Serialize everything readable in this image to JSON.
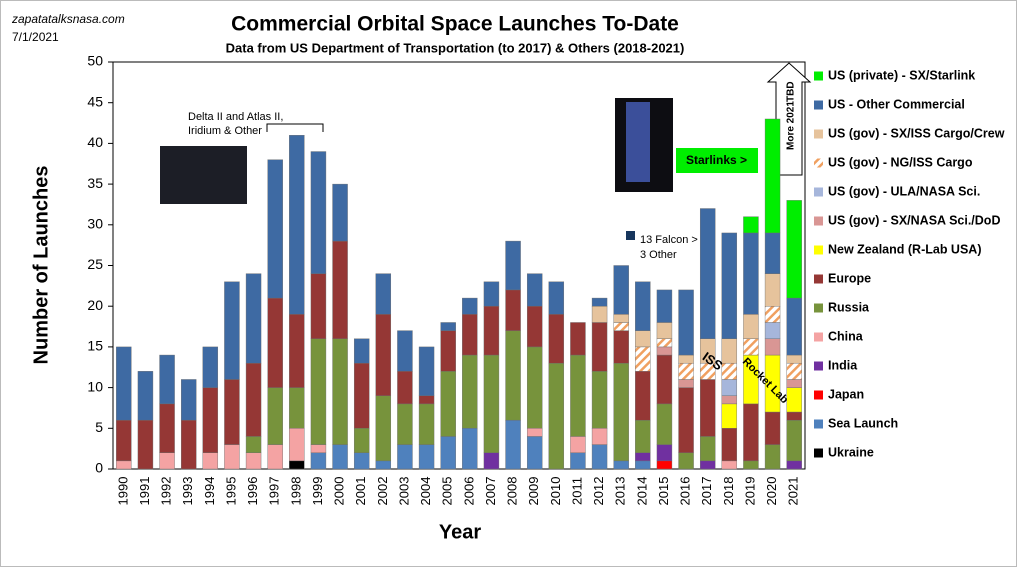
{
  "chart_data": {
    "type": "stacked-bar",
    "title": "Commercial Orbital Space Launches To-Date",
    "subtitle": "Data from US Department of Transportation (to 2017) & Others (2018-2021)",
    "source": "zapatatalksnasa.com",
    "date": "7/1/2021",
    "x_label": "Year",
    "y_label": "Number of Launches",
    "ylim": [
      0,
      50
    ],
    "yticks": [
      0,
      5,
      10,
      15,
      20,
      25,
      30,
      35,
      40,
      45,
      50
    ],
    "grid": false,
    "legend": "right",
    "categories": [
      "1990",
      "1991",
      "1992",
      "1993",
      "1994",
      "1995",
      "1996",
      "1997",
      "1998",
      "1999",
      "2000",
      "2001",
      "2002",
      "2003",
      "2004",
      "2005",
      "2006",
      "2007",
      "2008",
      "2009",
      "2010",
      "2011",
      "2012",
      "2013",
      "2014",
      "2015",
      "2016",
      "2017",
      "2018",
      "2019",
      "2020",
      "2021"
    ],
    "series": [
      {
        "name": "Ukraine",
        "color": "#000000",
        "values": [
          0,
          0,
          0,
          0,
          0,
          0,
          0,
          0,
          1,
          0,
          0,
          0,
          0,
          0,
          0,
          0,
          0,
          0,
          0,
          0,
          0,
          0,
          0,
          0,
          0,
          0,
          0,
          0,
          0,
          0,
          0,
          0
        ]
      },
      {
        "name": "Sea Launch",
        "color": "#4f81bd",
        "values": [
          0,
          0,
          0,
          0,
          0,
          0,
          0,
          0,
          0,
          2,
          3,
          2,
          1,
          3,
          3,
          4,
          5,
          0,
          6,
          4,
          0,
          2,
          3,
          1,
          1,
          0,
          0,
          0,
          0,
          0,
          0,
          0
        ]
      },
      {
        "name": "Japan",
        "color": "#ff0000",
        "values": [
          0,
          0,
          0,
          0,
          0,
          0,
          0,
          0,
          0,
          0,
          0,
          0,
          0,
          0,
          0,
          0,
          0,
          0,
          0,
          0,
          0,
          0,
          0,
          0,
          0,
          1,
          0,
          0,
          0,
          0,
          0,
          0
        ]
      },
      {
        "name": "India",
        "color": "#7030a0",
        "values": [
          0,
          0,
          0,
          0,
          0,
          0,
          0,
          0,
          0,
          0,
          0,
          0,
          0,
          0,
          0,
          0,
          0,
          2,
          0,
          0,
          0,
          0,
          0,
          0,
          1,
          2,
          0,
          1,
          0,
          0,
          0,
          1
        ]
      },
      {
        "name": "China",
        "color": "#f4a3a3",
        "values": [
          1,
          0,
          2,
          0,
          2,
          3,
          2,
          3,
          4,
          1,
          0,
          0,
          0,
          0,
          0,
          0,
          0,
          0,
          0,
          1,
          0,
          2,
          2,
          0,
          0,
          0,
          0,
          0,
          1,
          0,
          0,
          0
        ]
      },
      {
        "name": "Russia",
        "color": "#77933c",
        "values": [
          0,
          0,
          0,
          0,
          0,
          0,
          2,
          7,
          5,
          13,
          13,
          3,
          8,
          5,
          5,
          8,
          9,
          12,
          11,
          10,
          13,
          10,
          7,
          12,
          4,
          5,
          2,
          3,
          0,
          1,
          3,
          5
        ]
      },
      {
        "name": "Europe",
        "color": "#953735",
        "values": [
          5,
          6,
          6,
          6,
          8,
          8,
          9,
          11,
          9,
          8,
          12,
          8,
          10,
          4,
          1,
          5,
          5,
          6,
          5,
          5,
          6,
          4,
          6,
          4,
          6,
          6,
          8,
          7,
          4,
          7,
          4,
          1
        ]
      },
      {
        "name": "New Zealand (R-Lab USA)",
        "color": "#ffff00",
        "values": [
          0,
          0,
          0,
          0,
          0,
          0,
          0,
          0,
          0,
          0,
          0,
          0,
          0,
          0,
          0,
          0,
          0,
          0,
          0,
          0,
          0,
          0,
          0,
          0,
          0,
          0,
          0,
          0,
          3,
          6,
          7,
          3
        ]
      },
      {
        "name": "US (gov) - SX/NASA Sci./DoD",
        "color": "#d99694",
        "values": [
          0,
          0,
          0,
          0,
          0,
          0,
          0,
          0,
          0,
          0,
          0,
          0,
          0,
          0,
          0,
          0,
          0,
          0,
          0,
          0,
          0,
          0,
          0,
          0,
          0,
          1,
          1,
          0,
          1,
          0,
          2,
          1
        ]
      },
      {
        "name": "US (gov) - ULA/NASA Sci.",
        "color": "#a6b6db",
        "values": [
          0,
          0,
          0,
          0,
          0,
          0,
          0,
          0,
          0,
          0,
          0,
          0,
          0,
          0,
          0,
          0,
          0,
          0,
          0,
          0,
          0,
          0,
          0,
          0,
          0,
          0,
          0,
          0,
          2,
          0,
          2,
          0
        ]
      },
      {
        "name": "US (gov) - NG/ISS Cargo",
        "color": "#f0a060",
        "hatched": true,
        "values": [
          0,
          0,
          0,
          0,
          0,
          0,
          0,
          0,
          0,
          0,
          0,
          0,
          0,
          0,
          0,
          0,
          0,
          0,
          0,
          0,
          0,
          0,
          0,
          1,
          3,
          1,
          2,
          2,
          2,
          2,
          2,
          2
        ]
      },
      {
        "name": "US (gov) - SX/ISS Cargo/Crew",
        "color": "#e6c39c",
        "values": [
          0,
          0,
          0,
          0,
          0,
          0,
          0,
          0,
          0,
          0,
          0,
          0,
          0,
          0,
          0,
          0,
          0,
          0,
          0,
          0,
          0,
          0,
          2,
          1,
          2,
          2,
          1,
          3,
          3,
          3,
          4,
          1
        ]
      },
      {
        "name": "US - Other Commercial",
        "color": "#3e6aa3",
        "values": [
          9,
          6,
          6,
          5,
          5,
          12,
          11,
          17,
          22,
          15,
          7,
          3,
          5,
          5,
          6,
          1,
          2,
          3,
          6,
          4,
          4,
          0,
          1,
          6,
          6,
          4,
          8,
          16,
          13,
          10,
          5,
          7
        ]
      },
      {
        "name": "US (private) - SX/Starlink",
        "color": "#00ee00",
        "values": [
          0,
          0,
          0,
          0,
          0,
          0,
          0,
          0,
          0,
          0,
          0,
          0,
          0,
          0,
          0,
          0,
          0,
          0,
          0,
          0,
          0,
          0,
          0,
          0,
          0,
          0,
          0,
          0,
          0,
          2,
          14,
          12
        ]
      }
    ],
    "annotations": [
      "Delta II and Atlas II,",
      "Iridium & Other",
      "13 Falcon >",
      "3 Other",
      "Starlinks >",
      "More 2021",
      "TBD",
      "ISS",
      "Rocket Lab"
    ]
  }
}
